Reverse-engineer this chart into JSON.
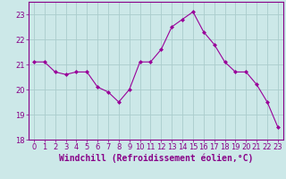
{
  "x": [
    0,
    1,
    2,
    3,
    4,
    5,
    6,
    7,
    8,
    9,
    10,
    11,
    12,
    13,
    14,
    15,
    16,
    17,
    18,
    19,
    20,
    21,
    22,
    23
  ],
  "y": [
    21.1,
    21.1,
    20.7,
    20.6,
    20.7,
    20.7,
    20.1,
    19.9,
    19.5,
    20.0,
    21.1,
    21.1,
    21.6,
    22.5,
    22.8,
    23.1,
    22.3,
    21.8,
    21.1,
    20.7,
    20.7,
    20.2,
    19.5,
    18.5
  ],
  "line_color": "#990099",
  "marker": "D",
  "marker_size": 2,
  "bg_color": "#cce8e8",
  "grid_color": "#aacccc",
  "xlabel": "Windchill (Refroidissement éolien,°C)",
  "xlabel_color": "#880088",
  "tick_color": "#880088",
  "ylim": [
    18,
    23.5
  ],
  "xlim": [
    -0.5,
    23.5
  ],
  "yticks": [
    18,
    19,
    20,
    21,
    22,
    23
  ],
  "xticks": [
    0,
    1,
    2,
    3,
    4,
    5,
    6,
    7,
    8,
    9,
    10,
    11,
    12,
    13,
    14,
    15,
    16,
    17,
    18,
    19,
    20,
    21,
    22,
    23
  ],
  "tick_fontsize": 6,
  "xlabel_fontsize": 7
}
